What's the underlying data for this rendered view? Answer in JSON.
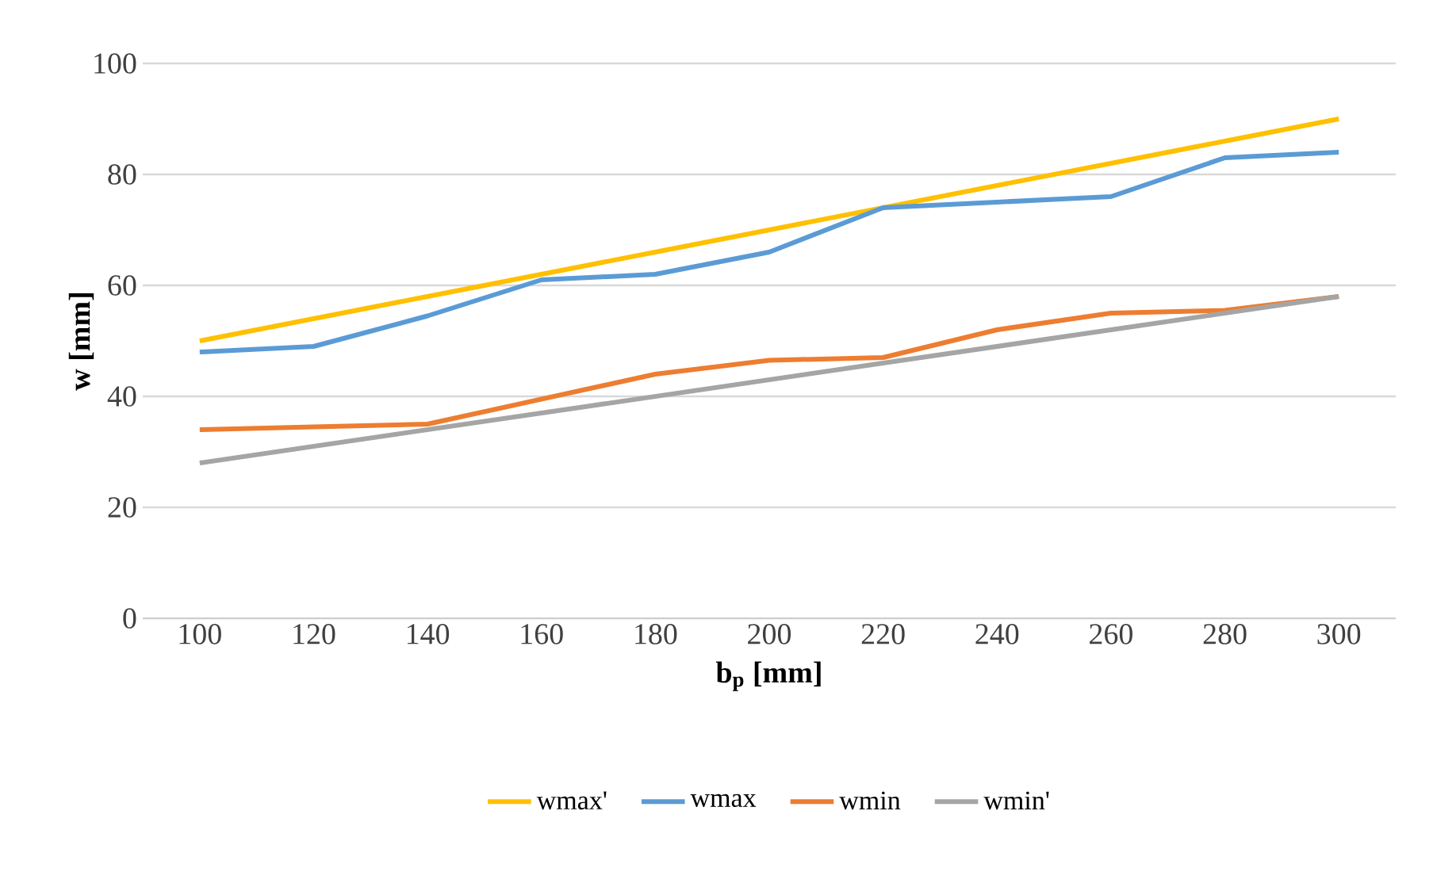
{
  "chart_data": {
    "type": "line",
    "xlabel": "b$_{p}$ [mm]",
    "ylabel": "w [mm]",
    "categories": [
      "100",
      "120",
      "140",
      "160",
      "180",
      "200",
      "220",
      "240",
      "260",
      "280",
      "300"
    ],
    "series": [
      {
        "name": "wmax'",
        "color": "#ffc000",
        "values": [
          50,
          54,
          58,
          62,
          66,
          70,
          74,
          78,
          82,
          86,
          90
        ]
      },
      {
        "name": "wmax",
        "color": "#5b9bd5",
        "values": [
          48,
          49,
          54.5,
          61,
          62,
          66,
          74,
          75,
          76,
          83,
          84
        ]
      },
      {
        "name": "wmin",
        "color": "#ed7d31",
        "values": [
          34,
          34.5,
          35,
          39.5,
          44,
          46.5,
          47,
          52,
          55,
          55.5,
          58
        ]
      },
      {
        "name": "wmin'",
        "color": "#a5a5a5",
        "values": [
          28,
          31,
          34,
          37,
          40,
          43,
          46,
          49,
          52,
          55,
          58
        ]
      }
    ],
    "ylim": [
      0,
      100
    ],
    "yticks": [
      0,
      20,
      40,
      60,
      80,
      100
    ],
    "grid": "y",
    "legend": "bottom",
    "marker": "none",
    "line_style": "solid"
  }
}
